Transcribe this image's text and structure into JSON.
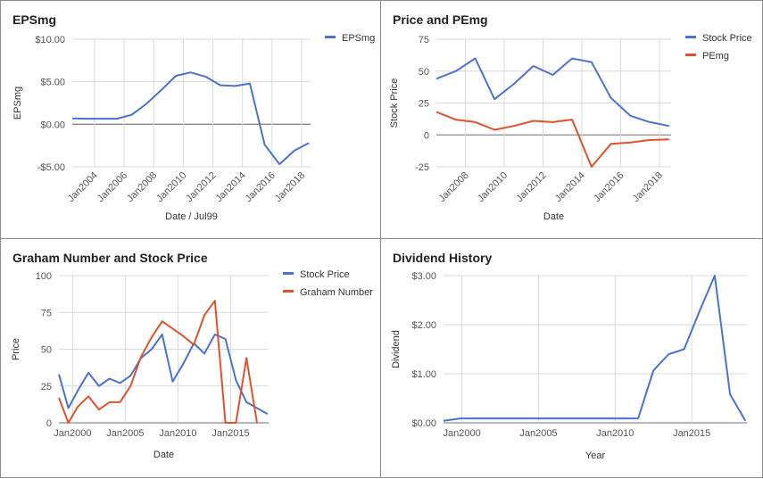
{
  "colors": {
    "blue": "#4a72d1",
    "red": "#e0522c",
    "grid": "#d9d9d9",
    "zero": "#8a8a8a",
    "text": "#555555"
  },
  "chart_data": [
    {
      "type": "line",
      "title": "EPSmg",
      "xlabel": "Date / Jul99",
      "ylabel": "EPSmg",
      "xlim": [
        2002.5,
        2018.6
      ],
      "ylim": [
        -5,
        10
      ],
      "y_ticks": [
        -5,
        0,
        5,
        10
      ],
      "y_tick_labels": [
        "-$5.00",
        "$0.00",
        "$5.00",
        "$10.00"
      ],
      "x_ticks": [
        2004,
        2006,
        2008,
        2010,
        2012,
        2014,
        2016,
        2018
      ],
      "x_tick_labels": [
        "Jan2004",
        "Jan2006",
        "Jan2008",
        "Jan2010",
        "Jan2012",
        "Jan2014",
        "Jan2016",
        "Jan2018"
      ],
      "x_tick_rotate": true,
      "legend": "top-right",
      "series": [
        {
          "name": "EPSmg",
          "color": "#4a72d1",
          "x": [
            2002.5,
            2003.5,
            2004.5,
            2005.5,
            2006.5,
            2007.5,
            2008.5,
            2009.5,
            2010.5,
            2011.5,
            2012.5,
            2013.5,
            2014.5,
            2015.5,
            2016.5,
            2017.5,
            2018.5
          ],
          "y": [
            0.7,
            0.65,
            0.65,
            0.65,
            1.1,
            2.4,
            4.0,
            5.7,
            6.1,
            5.6,
            4.6,
            4.5,
            4.8,
            -2.4,
            -4.7,
            -3.1,
            -2.2
          ]
        }
      ]
    },
    {
      "type": "line",
      "title": "Price and PEmg",
      "xlabel": "Date",
      "ylabel": "Stock Price",
      "xlim": [
        2006.5,
        2018.6
      ],
      "ylim": [
        -25,
        75
      ],
      "y_ticks": [
        -25,
        0,
        25,
        50,
        75
      ],
      "y_tick_labels": [
        "-25",
        "0",
        "25",
        "50",
        "75"
      ],
      "x_ticks": [
        2008,
        2010,
        2012,
        2014,
        2016,
        2018
      ],
      "x_tick_labels": [
        "Jan2008",
        "Jan2010",
        "Jan2012",
        "Jan2014",
        "Jan2016",
        "Jan2018"
      ],
      "x_tick_rotate": true,
      "legend": "top-right",
      "series": [
        {
          "name": "Stock Price",
          "color": "#4a72d1",
          "x": [
            2006.5,
            2007.5,
            2008.5,
            2009.5,
            2010.5,
            2011.5,
            2012.5,
            2013.5,
            2014.5,
            2015.5,
            2016.5,
            2017.5,
            2018.5
          ],
          "y": [
            44,
            50,
            60,
            28,
            40,
            54,
            47,
            60,
            57,
            29,
            15,
            10,
            7
          ]
        },
        {
          "name": "PEmg",
          "color": "#e0522c",
          "x": [
            2006.5,
            2007.5,
            2008.5,
            2009.5,
            2010.5,
            2011.5,
            2012.5,
            2013.5,
            2014.5,
            2015.5,
            2016.5,
            2017.5,
            2018.5
          ],
          "y": [
            18,
            12,
            10,
            4,
            7,
            11,
            10,
            12,
            -25,
            -7,
            -6,
            -4,
            -3.5
          ]
        }
      ]
    },
    {
      "type": "line",
      "title": "Graham Number and Stock Price",
      "xlabel": "Date",
      "ylabel": "Price",
      "xlim": [
        1998.7,
        2018.6
      ],
      "ylim": [
        0,
        100
      ],
      "y_ticks": [
        0,
        25,
        50,
        75,
        100
      ],
      "y_tick_labels": [
        "0",
        "25",
        "50",
        "75",
        "100"
      ],
      "x_ticks": [
        2000,
        2005,
        2010,
        2015
      ],
      "x_tick_labels": [
        "Jan2000",
        "Jan2005",
        "Jan2010",
        "Jan2015"
      ],
      "x_tick_rotate": false,
      "legend": "top-right",
      "series": [
        {
          "name": "Stock Price",
          "color": "#4a72d1",
          "x": [
            1998.7,
            1999.6,
            2000.5,
            2001.5,
            2002.5,
            2003.5,
            2004.5,
            2005.5,
            2006.5,
            2007.5,
            2008.5,
            2009.5,
            2010.5,
            2011.5,
            2012.5,
            2013.5,
            2014.5,
            2015.5,
            2016.5,
            2017.5,
            2018.5
          ],
          "y": [
            33,
            10,
            22,
            34,
            25,
            30,
            27,
            32,
            44,
            50,
            60,
            28,
            40,
            54,
            47,
            60,
            57,
            29,
            14,
            10,
            6
          ]
        },
        {
          "name": "Graham Number",
          "color": "#e0522c",
          "x": [
            1998.7,
            1999.6,
            2000.5,
            2001.5,
            2002.5,
            2003.5,
            2004.5,
            2005.5,
            2006.5,
            2007.5,
            2008.5,
            2009.5,
            2010.5,
            2011.5,
            2012.5,
            2013.5,
            2014.5,
            2015.5,
            2016.5,
            2017.5
          ],
          "y": [
            17,
            0,
            11,
            18,
            9,
            14,
            14,
            25,
            45,
            58,
            69,
            64,
            59,
            53,
            73,
            83,
            0,
            0,
            44,
            0
          ]
        }
      ]
    },
    {
      "type": "line",
      "title": "Dividend History",
      "xlabel": "Year",
      "ylabel": "Dividend",
      "xlim": [
        1998.8,
        2018.6
      ],
      "ylim": [
        0,
        3
      ],
      "y_ticks": [
        0,
        1,
        2,
        3
      ],
      "y_tick_labels": [
        "$0.00",
        "$1.00",
        "$2.00",
        "$3.00"
      ],
      "x_ticks": [
        2000,
        2005,
        2010,
        2015
      ],
      "x_tick_labels": [
        "Jan2000",
        "Jan2005",
        "Jan2010",
        "Jan2015"
      ],
      "x_tick_rotate": false,
      "legend": "none",
      "series": [
        {
          "name": "",
          "color": "#4a72d1",
          "x": [
            1998.8,
            1999.9,
            2000.5,
            2005,
            2010.5,
            2011.5,
            2012.5,
            2013.5,
            2014.5,
            2015.5,
            2016.5,
            2017.5,
            2018.5
          ],
          "y": [
            0.04,
            0.09,
            0.09,
            0.09,
            0.09,
            0.09,
            1.07,
            1.4,
            1.5,
            2.27,
            3.0,
            0.58,
            0.04
          ]
        }
      ]
    }
  ]
}
